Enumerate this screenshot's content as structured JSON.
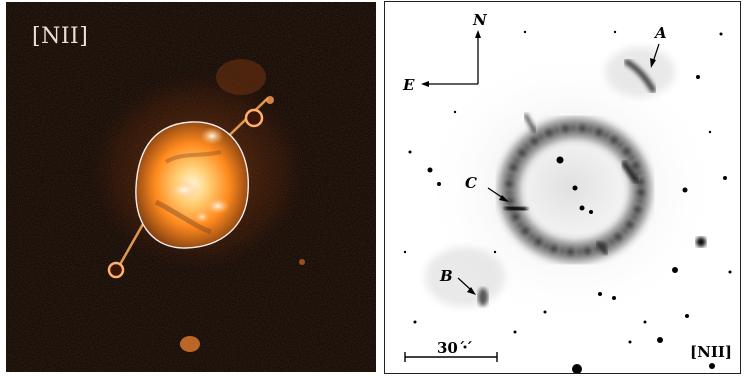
{
  "left_panel": {
    "filter_label": "[NII]"
  },
  "right_panel": {
    "filter_label": "[NII]",
    "compass": {
      "north": "N",
      "east": "E"
    },
    "knots": {
      "a": "A",
      "b": "B",
      "c": "C"
    },
    "scale_bar": {
      "label": "30´´"
    }
  },
  "colors": {
    "nebula_core": "#ffe6b0",
    "nebula_mid": "#ff8a1e",
    "background_dark": "#0a0505"
  }
}
